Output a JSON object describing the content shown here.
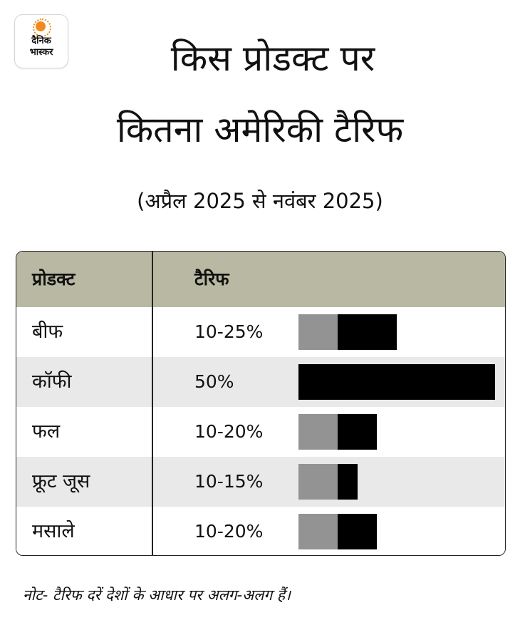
{
  "logo": {
    "line1": "दैनिक",
    "line2": "भास्कर"
  },
  "title_line1": "किस प्रोडक्ट पर",
  "title_line2": "कितना अमेरिकी टैरिफ",
  "subtitle": "(अप्रैल 2025 से नवंबर 2025)",
  "note": "नोट- टैरिफ दरें देशों के आधार पर अलग-अलग हैं।",
  "colors": {
    "header_bg": "#b9b9a3",
    "row_alt": "#e9e9e9",
    "bar_min": "#939393",
    "bar_max": "#000000"
  },
  "chart_data": {
    "type": "table",
    "columns": [
      "प्रोडक्ट",
      "टैरिफ"
    ],
    "rows": [
      {
        "product": "बीफ",
        "tariff": "10-25%",
        "min": 10,
        "max": 25
      },
      {
        "product": "कॉफी",
        "tariff": "50%",
        "min": 0,
        "max": 50
      },
      {
        "product": "फल",
        "tariff": "10-20%",
        "min": 10,
        "max": 20
      },
      {
        "product": "फ्रूट जूस",
        "tariff": "10-15%",
        "min": 10,
        "max": 15
      },
      {
        "product": "मसाले",
        "tariff": "10-20%",
        "min": 10,
        "max": 20
      }
    ],
    "xlim": [
      0,
      50
    ]
  }
}
